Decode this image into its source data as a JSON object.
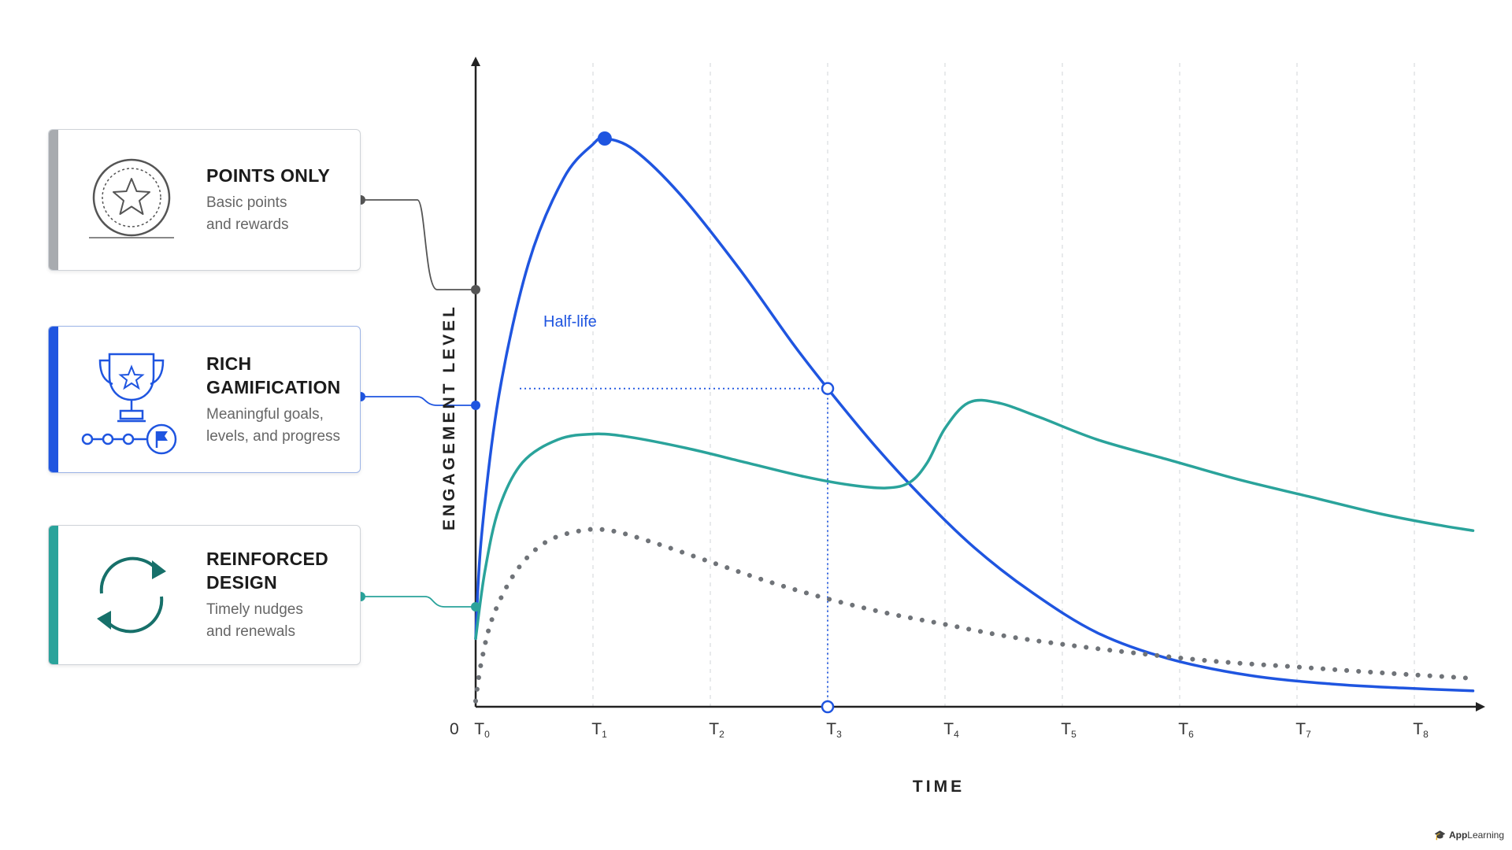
{
  "cards": [
    {
      "title": "POINTS ONLY",
      "desc": "Basic points\nand rewards",
      "icon": "star-badge-icon",
      "accent": "#a8abaf"
    },
    {
      "title": "RICH\nGAMIFICATION",
      "desc": "Meaningful goals,\nlevels, and progress",
      "icon": "trophy-progress-icon",
      "accent": "#1f55e0"
    },
    {
      "title": "REINFORCED\nDESIGN",
      "desc": "Timely nudges\nand renewals",
      "icon": "refresh-cycle-icon",
      "accent": "#2aa39b"
    }
  ],
  "chart_data": {
    "type": "line",
    "xlabel": "TIME",
    "ylabel": "ENGAGEMENT LEVEL",
    "origin_label": "0",
    "x_ticks": [
      {
        "main": "T",
        "sub": "0",
        "x": 0
      },
      {
        "main": "T",
        "sub": "1",
        "x": 1
      },
      {
        "main": "T",
        "sub": "2",
        "x": 2
      },
      {
        "main": "T",
        "sub": "3",
        "x": 3
      },
      {
        "main": "T",
        "sub": "4",
        "x": 4
      },
      {
        "main": "T",
        "sub": "5",
        "x": 5
      },
      {
        "main": "T",
        "sub": "6",
        "x": 6
      },
      {
        "main": "T",
        "sub": "7",
        "x": 7
      },
      {
        "main": "T",
        "sub": "8",
        "x": 8
      }
    ],
    "xlim": [
      0,
      8.6
    ],
    "ylim": [
      0,
      1.0
    ],
    "grid": "vertical-dashed",
    "annotation": {
      "label": "Half-life",
      "x": 3,
      "y": 0.56,
      "color": "#1f55e0"
    },
    "series": [
      {
        "id": "rich",
        "color": "#1f55e0",
        "style": "solid",
        "points": [
          [
            0,
            0.12
          ],
          [
            0.05,
            0.3
          ],
          [
            0.2,
            0.55
          ],
          [
            0.45,
            0.78
          ],
          [
            0.75,
            0.93
          ],
          [
            1.0,
            0.99
          ],
          [
            1.1,
            1.0
          ],
          [
            1.35,
            0.98
          ],
          [
            1.75,
            0.9
          ],
          [
            2.25,
            0.77
          ],
          [
            2.7,
            0.64
          ],
          [
            3.0,
            0.56
          ],
          [
            3.4,
            0.46
          ],
          [
            3.8,
            0.37
          ],
          [
            4.25,
            0.28
          ],
          [
            4.75,
            0.2
          ],
          [
            5.3,
            0.13
          ],
          [
            5.9,
            0.085
          ],
          [
            6.6,
            0.055
          ],
          [
            7.3,
            0.04
          ],
          [
            7.9,
            0.033
          ],
          [
            8.5,
            0.028
          ]
        ],
        "peak_marker": [
          1.1,
          1.0
        ],
        "half_life_marker": [
          3.0,
          0.56
        ]
      },
      {
        "id": "reinforced",
        "color": "#2aa39b",
        "style": "solid",
        "points": [
          [
            0,
            0.12
          ],
          [
            0.08,
            0.24
          ],
          [
            0.2,
            0.35
          ],
          [
            0.4,
            0.43
          ],
          [
            0.7,
            0.47
          ],
          [
            1.0,
            0.48
          ],
          [
            1.3,
            0.475
          ],
          [
            1.8,
            0.455
          ],
          [
            2.3,
            0.43
          ],
          [
            2.8,
            0.405
          ],
          [
            3.2,
            0.39
          ],
          [
            3.5,
            0.385
          ],
          [
            3.7,
            0.395
          ],
          [
            3.85,
            0.43
          ],
          [
            4.0,
            0.49
          ],
          [
            4.2,
            0.535
          ],
          [
            4.45,
            0.535
          ],
          [
            4.8,
            0.51
          ],
          [
            5.3,
            0.47
          ],
          [
            5.9,
            0.435
          ],
          [
            6.5,
            0.4
          ],
          [
            7.1,
            0.37
          ],
          [
            7.7,
            0.34
          ],
          [
            8.2,
            0.32
          ],
          [
            8.5,
            0.31
          ]
        ]
      },
      {
        "id": "points",
        "color": "#6f7378",
        "style": "dotted",
        "points": [
          [
            0,
            0.01
          ],
          [
            0.05,
            0.08
          ],
          [
            0.15,
            0.16
          ],
          [
            0.35,
            0.24
          ],
          [
            0.6,
            0.29
          ],
          [
            0.9,
            0.31
          ],
          [
            1.15,
            0.31
          ],
          [
            1.5,
            0.29
          ],
          [
            2.0,
            0.255
          ],
          [
            2.5,
            0.22
          ],
          [
            3.0,
            0.19
          ],
          [
            3.5,
            0.165
          ],
          [
            4.0,
            0.145
          ],
          [
            4.5,
            0.125
          ],
          [
            5.0,
            0.11
          ],
          [
            5.6,
            0.095
          ],
          [
            6.3,
            0.08
          ],
          [
            7.0,
            0.07
          ],
          [
            7.7,
            0.06
          ],
          [
            8.5,
            0.05
          ]
        ]
      }
    ]
  },
  "brand": {
    "name_bold": "App",
    "name_rest": "Learning"
  }
}
